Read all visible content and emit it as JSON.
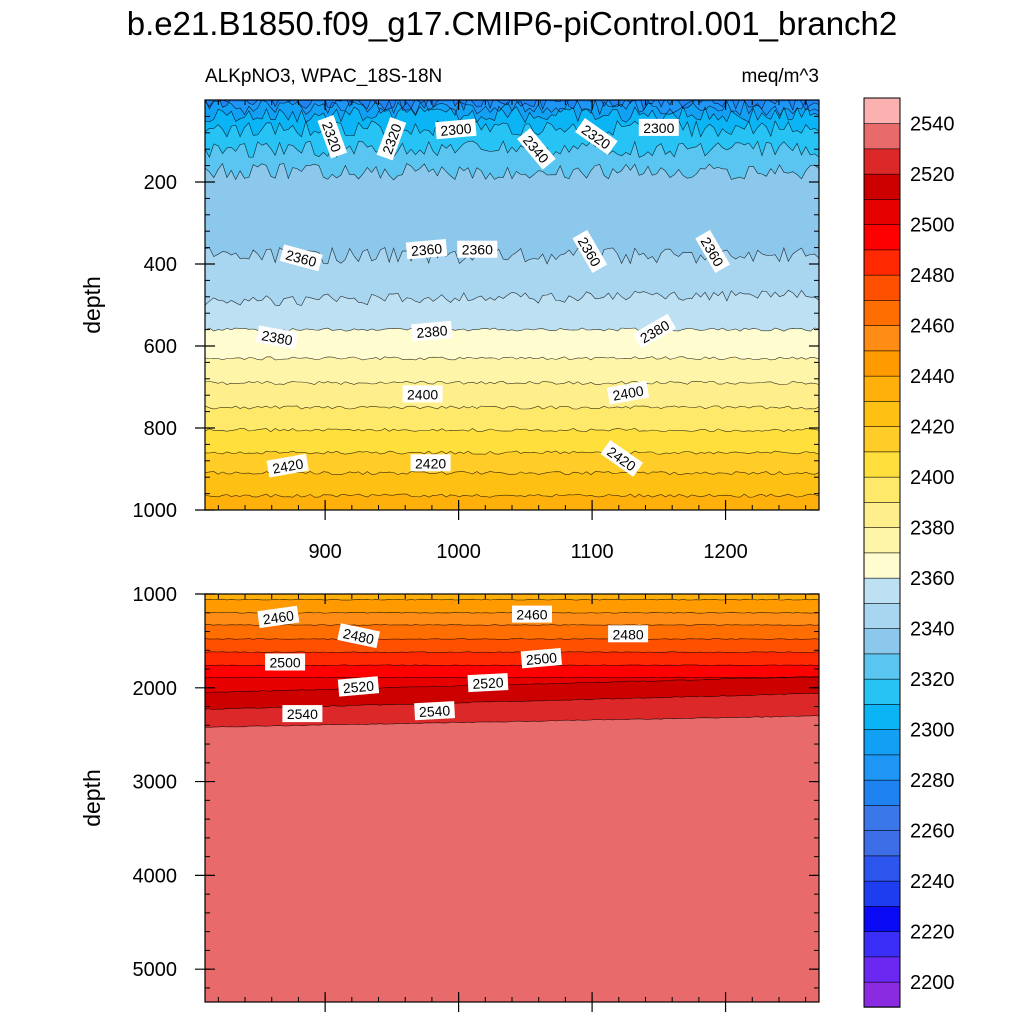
{
  "chart_data": {
    "type": "contour",
    "title": "b.e21.B1850.f09_g17.CMIP6-piControl.001_branch2",
    "subtitle_left": "ALKpNO3, WPAC_18S-18N",
    "subtitle_right": "meq/m^3",
    "ylabel": "depth",
    "xlim": [
      810,
      1270
    ],
    "x_ticks": [
      900,
      1000,
      1100,
      1200
    ],
    "x_tick_labels": [
      "900",
      "1000",
      "1100",
      "1200"
    ],
    "panels": [
      {
        "name": "upper",
        "ylim": [
          0,
          1000
        ],
        "y_ticks": [
          200,
          400,
          600,
          800,
          1000
        ],
        "y_tick_labels": [
          "200",
          "400",
          "600",
          "800",
          "1000"
        ],
        "y_reversed": true,
        "contour_labels": [
          {
            "text": "2320",
            "x": 905,
            "y": 90,
            "rotate": 70
          },
          {
            "text": "2320",
            "x": 950,
            "y": 95,
            "rotate": -70
          },
          {
            "text": "2300",
            "x": 998,
            "y": 72,
            "rotate": -5
          },
          {
            "text": "2340",
            "x": 1058,
            "y": 120,
            "rotate": 50
          },
          {
            "text": "2320",
            "x": 1103,
            "y": 90,
            "rotate": 35
          },
          {
            "text": "2300",
            "x": 1150,
            "y": 68,
            "rotate": 0
          },
          {
            "text": "2360",
            "x": 882,
            "y": 386,
            "rotate": 15
          },
          {
            "text": "2360",
            "x": 976,
            "y": 365,
            "rotate": -5
          },
          {
            "text": "2360",
            "x": 1014,
            "y": 365,
            "rotate": 0
          },
          {
            "text": "2360",
            "x": 1098,
            "y": 370,
            "rotate": 60
          },
          {
            "text": "2360",
            "x": 1190,
            "y": 370,
            "rotate": 60
          },
          {
            "text": "2380",
            "x": 864,
            "y": 580,
            "rotate": 10
          },
          {
            "text": "2380",
            "x": 980,
            "y": 565,
            "rotate": -5
          },
          {
            "text": "2380",
            "x": 1147,
            "y": 565,
            "rotate": -30
          },
          {
            "text": "2400",
            "x": 973,
            "y": 718,
            "rotate": 0
          },
          {
            "text": "2400",
            "x": 1127,
            "y": 715,
            "rotate": -10
          },
          {
            "text": "2420",
            "x": 872,
            "y": 893,
            "rotate": -10
          },
          {
            "text": "2420",
            "x": 979,
            "y": 886,
            "rotate": 0
          },
          {
            "text": "2420",
            "x": 1122,
            "y": 875,
            "rotate": 35
          }
        ]
      },
      {
        "name": "lower",
        "ylim": [
          1000,
          5350
        ],
        "y_ticks": [
          1000,
          2000,
          3000,
          4000,
          5000
        ],
        "y_tick_labels": [
          "1000",
          "2000",
          "3000",
          "4000",
          "5000"
        ],
        "y_reversed": true,
        "contour_labels": [
          {
            "text": "2460",
            "x": 865,
            "y": 1250,
            "rotate": -8
          },
          {
            "text": "2480",
            "x": 925,
            "y": 1450,
            "rotate": 12
          },
          {
            "text": "2500",
            "x": 870,
            "y": 1730,
            "rotate": 0
          },
          {
            "text": "2520",
            "x": 925,
            "y": 1990,
            "rotate": -5
          },
          {
            "text": "2540",
            "x": 883,
            "y": 2280,
            "rotate": 0
          },
          {
            "text": "2460",
            "x": 1055,
            "y": 1220,
            "rotate": 0
          },
          {
            "text": "2480",
            "x": 1127,
            "y": 1430,
            "rotate": 0
          },
          {
            "text": "2500",
            "x": 1062,
            "y": 1690,
            "rotate": -5
          },
          {
            "text": "2520",
            "x": 1022,
            "y": 1950,
            "rotate": -3
          },
          {
            "text": "2540",
            "x": 982,
            "y": 2250,
            "rotate": -3
          }
        ]
      }
    ],
    "levels": [
      2200,
      2210,
      2220,
      2230,
      2240,
      2250,
      2260,
      2270,
      2280,
      2290,
      2300,
      2310,
      2320,
      2330,
      2340,
      2350,
      2360,
      2370,
      2380,
      2390,
      2400,
      2410,
      2420,
      2430,
      2440,
      2450,
      2460,
      2470,
      2480,
      2490,
      2500,
      2510,
      2520,
      2530,
      2540,
      2550
    ],
    "colorbar_ticks": [
      2200,
      2220,
      2240,
      2260,
      2280,
      2300,
      2320,
      2340,
      2360,
      2380,
      2400,
      2420,
      2440,
      2460,
      2480,
      2500,
      2520,
      2540
    ],
    "colorbar_labels": [
      "2200",
      "2220",
      "2240",
      "2260",
      "2280",
      "2300",
      "2320",
      "2340",
      "2360",
      "2380",
      "2400",
      "2420",
      "2440",
      "2460",
      "2480",
      "2500",
      "2520",
      "2540"
    ],
    "colors": [
      "#8a2be2",
      "#6a28f0",
      "#3a2ef8",
      "#0a0af5",
      "#1e3cf0",
      "#2b55ec",
      "#3d6ee8",
      "#3a78ea",
      "#1e82f0",
      "#1e96f5",
      "#12a0f5",
      "#0ab4f5",
      "#28c3f5",
      "#5ac5f0",
      "#8cc8ec",
      "#a8d5f0",
      "#bde0f2",
      "#fffdd0",
      "#fff5a8",
      "#ffef8c",
      "#ffe96a",
      "#ffdf3c",
      "#ffcc28",
      "#ffc014",
      "#ffb00a",
      "#ff9a00",
      "#ff8c14",
      "#ff6e00",
      "#ff5000",
      "#ff2800",
      "#ff0000",
      "#e60000",
      "#cd0000",
      "#dc2828",
      "#e86a6a",
      "#fcb1b1"
    ]
  }
}
